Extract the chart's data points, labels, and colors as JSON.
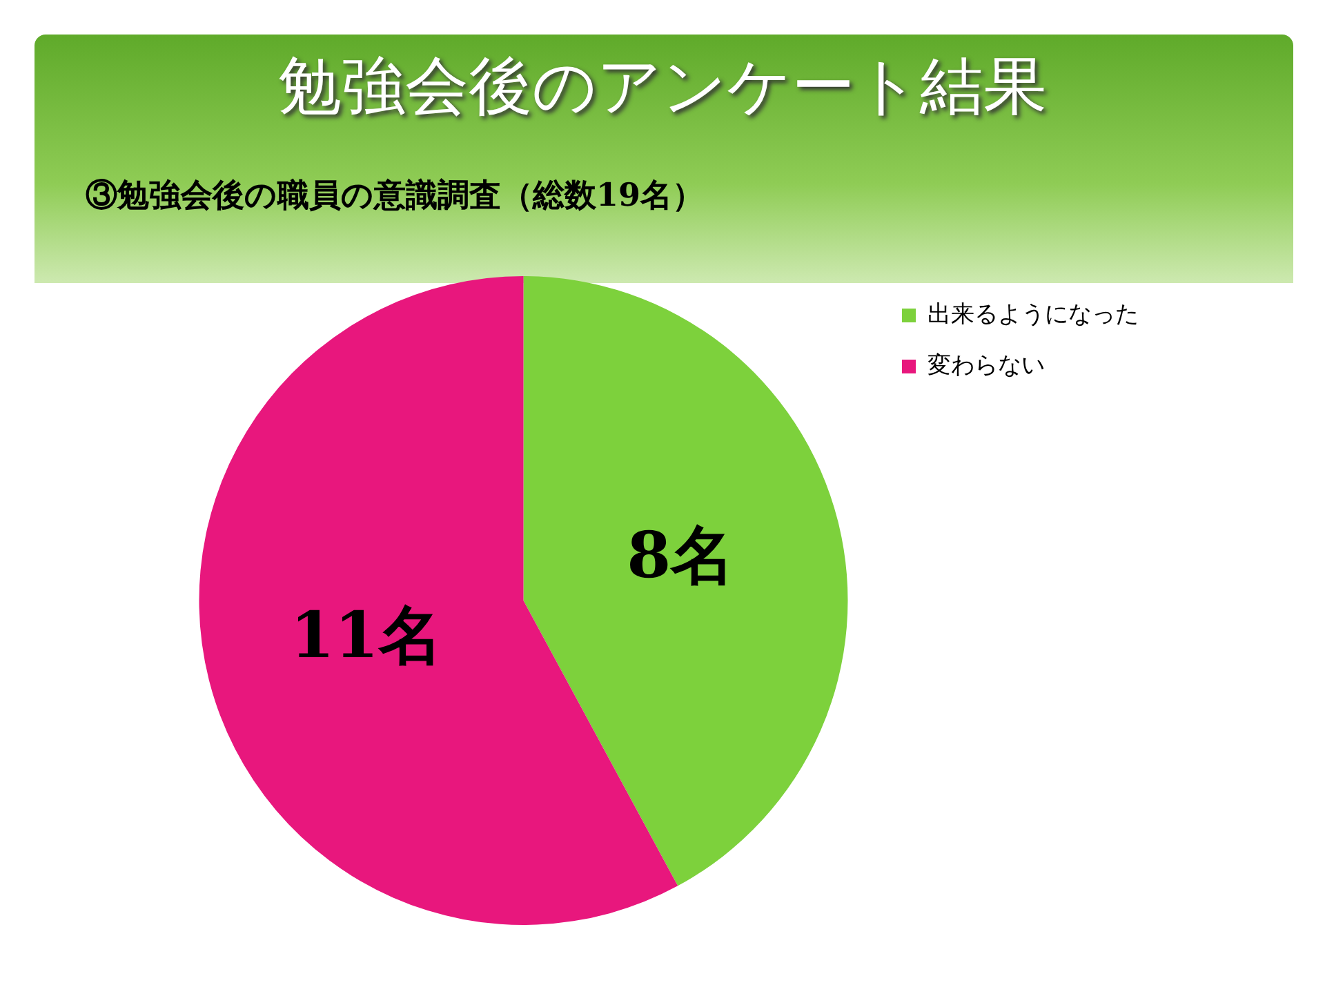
{
  "chart_data": {
    "type": "pie",
    "title": "勉強会後のアンケート結果",
    "subtitle": "③勉強会後の職員の意識調査（総数19名）",
    "categories": [
      "出来るようになった",
      "変わらない"
    ],
    "values": [
      8,
      11
    ],
    "value_labels": [
      "8名",
      "11名"
    ],
    "colors": [
      "#7dd13c",
      "#e8177d"
    ],
    "legend": "right"
  }
}
